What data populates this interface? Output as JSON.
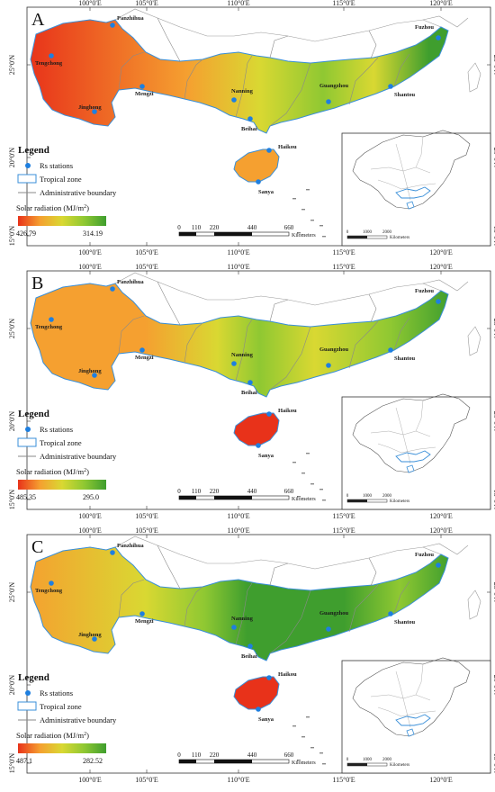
{
  "panels": [
    {
      "label": "A",
      "legend_min": "426.79",
      "legend_max": "314.19",
      "colors": [
        "#e8321a",
        "#f5a030",
        "#d9d832",
        "#8fc832",
        "#3f9e2e"
      ],
      "stops": [
        {
          "offset": 0.0,
          "c": 0
        },
        {
          "offset": 0.38,
          "c": 1
        },
        {
          "offset": 0.55,
          "c": 2
        },
        {
          "offset": 0.7,
          "c": 3
        },
        {
          "offset": 0.82,
          "c": 2
        },
        {
          "offset": 0.95,
          "c": 4
        },
        {
          "offset": 1.0,
          "c": 4
        }
      ],
      "hainan": "#f5a030"
    },
    {
      "label": "B",
      "legend_min": "485.35",
      "legend_max": "295.0",
      "colors": [
        "#e8321a",
        "#f5a030",
        "#d9d832",
        "#8fc832",
        "#3f9e2e"
      ],
      "stops": [
        {
          "offset": 0.0,
          "c": 1
        },
        {
          "offset": 0.28,
          "c": 1
        },
        {
          "offset": 0.45,
          "c": 2
        },
        {
          "offset": 0.55,
          "c": 3
        },
        {
          "offset": 0.68,
          "c": 2
        },
        {
          "offset": 0.86,
          "c": 3
        },
        {
          "offset": 1.0,
          "c": 4
        }
      ],
      "hainan": "#e8321a"
    },
    {
      "label": "C",
      "legend_min": "487.1",
      "legend_max": "282.52",
      "colors": [
        "#e8321a",
        "#f5a030",
        "#d9d832",
        "#8fc832",
        "#3f9e2e"
      ],
      "stops": [
        {
          "offset": 0.0,
          "c": 1
        },
        {
          "offset": 0.28,
          "c": 2
        },
        {
          "offset": 0.42,
          "c": 3
        },
        {
          "offset": 0.52,
          "c": 4
        },
        {
          "offset": 0.75,
          "c": 4
        },
        {
          "offset": 0.88,
          "c": 3
        },
        {
          "offset": 1.0,
          "c": 4
        }
      ],
      "hainan": "#e8321a"
    }
  ],
  "lon_labels": [
    "100°0'E",
    "105°0'E",
    "110°0'E",
    "115°0'E",
    "120°0'E"
  ],
  "lat_labels": [
    "25°0'N",
    "20°0'N",
    "15°0'N"
  ],
  "stations": [
    {
      "name": "Panzhihua"
    },
    {
      "name": "Tengchong"
    },
    {
      "name": "Mengzi"
    },
    {
      "name": "Jinghong"
    },
    {
      "name": "Nanning"
    },
    {
      "name": "Beihai"
    },
    {
      "name": "Guangzhou"
    },
    {
      "name": "Shantou"
    },
    {
      "name": "Fuzhou"
    },
    {
      "name": "Haikou"
    },
    {
      "name": "Sanya"
    }
  ],
  "legend": {
    "title": "Legend",
    "rs_stations": "Rs stations",
    "tropical_zone": "Tropical zone",
    "admin_boundary": "Administrative boundary",
    "solar_radiation": "Solar radiation (MJ/m",
    "solar_radiation_sup": "2",
    "solar_radiation_end": ")"
  },
  "scale_bar": {
    "ticks": [
      "0",
      "110",
      "220",
      "440",
      "660"
    ],
    "unit": "Kilometers"
  },
  "inset_scale": {
    "ticks": [
      "0",
      "1000",
      "2000"
    ],
    "unit": "Kilometers"
  }
}
